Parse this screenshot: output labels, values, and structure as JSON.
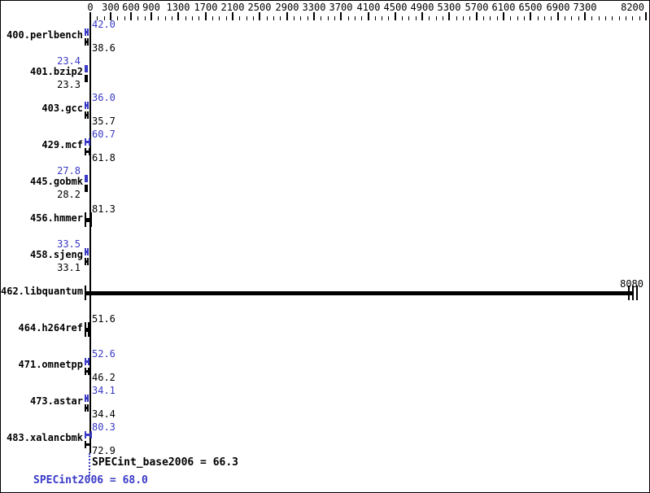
{
  "colors": {
    "peak_blue": "#3939c6",
    "base_black": "#000000",
    "background": "#ffffff"
  },
  "axis": {
    "min": 0,
    "max": 8200,
    "minor_step": 100,
    "labeled_ticks": [
      0,
      300,
      600,
      900,
      1300,
      1700,
      2100,
      2500,
      2900,
      3300,
      3700,
      4100,
      4500,
      4900,
      5300,
      5700,
      6100,
      6500,
      6900,
      7300,
      8200
    ]
  },
  "benchmarks": [
    {
      "name": "400.perlbench",
      "peak": "42.0",
      "base": "38.6",
      "peak_val": 42.0,
      "base_val": 38.6,
      "label_side": "right"
    },
    {
      "name": "401.bzip2",
      "peak": "23.4",
      "base": "23.3",
      "peak_val": 23.4,
      "base_val": 23.3,
      "label_side": "left"
    },
    {
      "name": "403.gcc",
      "peak": "36.0",
      "base": "35.7",
      "peak_val": 36.0,
      "base_val": 35.7,
      "label_side": "right"
    },
    {
      "name": "429.mcf",
      "peak": "60.7",
      "base": "61.8",
      "peak_val": 60.7,
      "base_val": 61.8,
      "label_side": "right"
    },
    {
      "name": "445.gobmk",
      "peak": "27.8",
      "base": "28.2",
      "peak_val": 27.8,
      "base_val": 28.2,
      "label_side": "left"
    },
    {
      "name": "456.hmmer",
      "single": "81.3",
      "single_val": 81.3,
      "label_side": "right"
    },
    {
      "name": "458.sjeng",
      "peak": "33.5",
      "base": "33.1",
      "peak_val": 33.5,
      "base_val": 33.1,
      "label_side": "left"
    },
    {
      "name": "462.libquantum",
      "single": "8080",
      "single_val": 8080,
      "label_side": "end",
      "multi_run_ticks": true
    },
    {
      "name": "464.h264ref",
      "single": "51.6",
      "single_val": 51.6,
      "label_side": "right"
    },
    {
      "name": "471.omnetpp",
      "peak": "52.6",
      "base": "46.2",
      "peak_val": 52.6,
      "base_val": 46.2,
      "label_side": "right"
    },
    {
      "name": "473.astar",
      "peak": "34.1",
      "base": "34.4",
      "peak_val": 34.1,
      "base_val": 34.4,
      "label_side": "right"
    },
    {
      "name": "483.xalancbmk",
      "peak": "80.3",
      "base": "72.9",
      "peak_val": 80.3,
      "base_val": 72.9,
      "label_side": "right"
    }
  ],
  "summary": {
    "base_text": "SPECint_base2006 = 66.3",
    "peak_text": "SPECint2006 = 68.0",
    "base_value": 66.3,
    "peak_value": 68.0
  },
  "chart_data": {
    "type": "bar",
    "orientation": "horizontal",
    "title": "",
    "xlabel": "",
    "ylabel": "",
    "categories": [
      "400.perlbench",
      "401.bzip2",
      "403.gcc",
      "429.mcf",
      "445.gobmk",
      "456.hmmer",
      "458.sjeng",
      "462.libquantum",
      "464.h264ref",
      "471.omnetpp",
      "473.astar",
      "483.xalancbmk"
    ],
    "series": [
      {
        "name": "SPECint2006 (peak)",
        "color": "#3939c6",
        "values": [
          42.0,
          23.4,
          36.0,
          60.7,
          27.8,
          null,
          33.5,
          null,
          null,
          52.6,
          34.1,
          80.3
        ]
      },
      {
        "name": "SPECint_base2006 (base)",
        "color": "#000000",
        "values": [
          38.6,
          23.3,
          35.7,
          61.8,
          28.2,
          81.3,
          33.1,
          8080,
          51.6,
          46.2,
          34.4,
          72.9
        ]
      }
    ],
    "xlim": [
      0,
      8200
    ],
    "x_minor_step": 100,
    "x_tick_labels": [
      0,
      300,
      600,
      900,
      1300,
      1700,
      2100,
      2500,
      2900,
      3300,
      3700,
      4100,
      4500,
      4900,
      5300,
      5700,
      6100,
      6500,
      6900,
      7300,
      8200
    ],
    "grid": false,
    "legend_position": "none",
    "annotations": [
      "SPECint_base2006 = 66.3",
      "SPECint2006 = 68.0"
    ],
    "means": {
      "base": 66.3,
      "peak": 68.0
    }
  }
}
